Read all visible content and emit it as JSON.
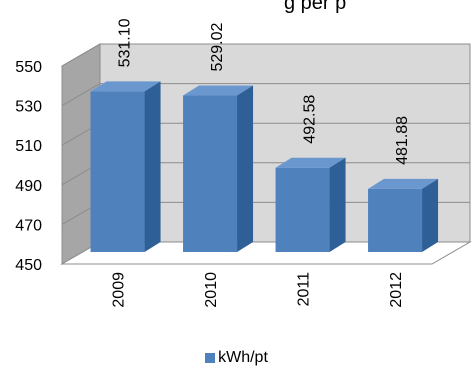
{
  "chart_data": {
    "type": "bar",
    "title_fragment": "g per p",
    "categories": [
      "2009",
      "2010",
      "2011",
      "2012"
    ],
    "series": [
      {
        "name": "kWh/pt",
        "values": [
          531.1,
          529.02,
          492.58,
          481.88
        ],
        "color": "#4F81BD"
      }
    ],
    "data_labels": [
      "531.10",
      "529.02",
      "492.58",
      "481.88"
    ],
    "y_ticks": [
      "550",
      "530",
      "510",
      "490",
      "470",
      "450"
    ],
    "ylim": [
      450,
      550
    ],
    "legend_position": "bottom",
    "style": "3d-column",
    "wall_color": "#D9D9D9",
    "floor_color": "#FFFFFF"
  }
}
